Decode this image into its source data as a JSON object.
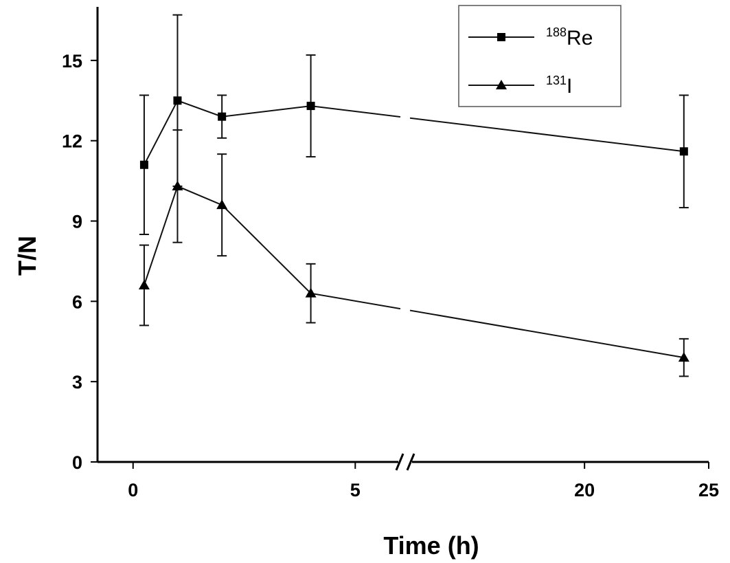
{
  "chart_data": {
    "type": "line",
    "title": "",
    "xlabel": "Time (h)",
    "ylabel": "T/N",
    "ylim": [
      0,
      17
    ],
    "yticks": [
      0,
      3,
      6,
      9,
      12,
      15
    ],
    "x_segments": [
      {
        "range": [
          -0.8,
          6
        ],
        "ticks": [
          0,
          5
        ]
      },
      {
        "range": [
          13,
          25
        ],
        "ticks": [
          20,
          25
        ]
      }
    ],
    "axis_break": "between 6 and 13",
    "grid": false,
    "legend": {
      "placement": "top-right",
      "boxed": true
    },
    "series": [
      {
        "name_sup": "188",
        "name_main": "Re",
        "marker": "square",
        "color": "#000000",
        "x": [
          0.25,
          1,
          2,
          4,
          24
        ],
        "y": [
          11.1,
          13.5,
          12.9,
          13.3,
          11.6
        ],
        "err": [
          2.6,
          3.2,
          0.8,
          1.9,
          2.1
        ]
      },
      {
        "name_sup": "131",
        "name_main": "I",
        "marker": "triangle",
        "color": "#000000",
        "x": [
          0.25,
          1,
          2,
          4,
          24
        ],
        "y": [
          6.6,
          10.3,
          9.6,
          6.3,
          3.9
        ],
        "err": [
          1.5,
          2.1,
          1.9,
          1.1,
          0.7
        ]
      }
    ]
  }
}
